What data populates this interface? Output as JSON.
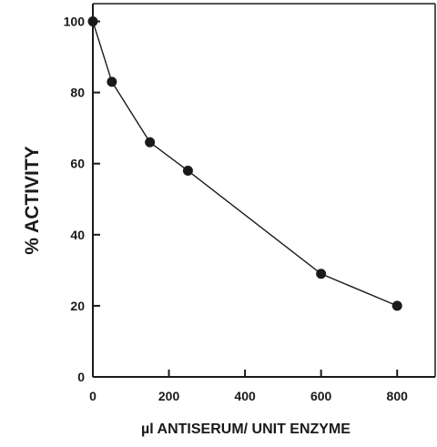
{
  "chart_data": {
    "type": "line",
    "title": "",
    "xlabel": "µl ANTISERUM/ UNIT ENZYME",
    "ylabel": "% ACTIVITY",
    "xlim": [
      0,
      900
    ],
    "ylim": [
      0,
      105
    ],
    "xticks": [
      0,
      200,
      400,
      600,
      800
    ],
    "yticks": [
      0,
      20,
      40,
      60,
      80,
      100
    ],
    "grid": false,
    "legend": "none",
    "series": [
      {
        "x": [
          0,
          50,
          150,
          250,
          600,
          800
        ],
        "y": [
          100,
          83,
          66,
          58,
          29,
          20
        ],
        "color": "#1a1a1a",
        "marker": "filled-circle"
      }
    ]
  }
}
